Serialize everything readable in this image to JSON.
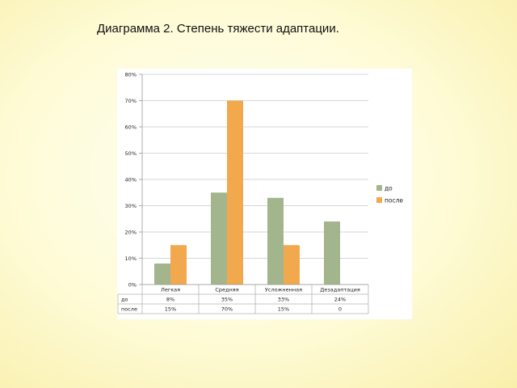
{
  "slide": {
    "title": "Диаграмма 2. Степень тяжести адаптации."
  },
  "chart_data": {
    "type": "bar",
    "categories": [
      "Легкая",
      "Средняя",
      "Усложненная",
      "Дезадаптация"
    ],
    "series": [
      {
        "name": "до",
        "values": [
          8,
          35,
          33,
          24
        ],
        "color": "#a3b58c"
      },
      {
        "name": "после",
        "values": [
          15,
          70,
          15,
          0
        ],
        "color": "#f2a94e"
      }
    ],
    "ylim": [
      0,
      80
    ],
    "yticks": [
      "0%",
      "10%",
      "20%",
      "30%",
      "40%",
      "50%",
      "60%",
      "70%",
      "80%"
    ],
    "grid": true,
    "legend_position": "right",
    "data_table": {
      "rows": [
        {
          "label": "до",
          "cells": [
            "8%",
            "35%",
            "33%",
            "24%"
          ]
        },
        {
          "label": "после",
          "cells": [
            "15%",
            "70%",
            "15%",
            "0"
          ]
        }
      ]
    }
  }
}
